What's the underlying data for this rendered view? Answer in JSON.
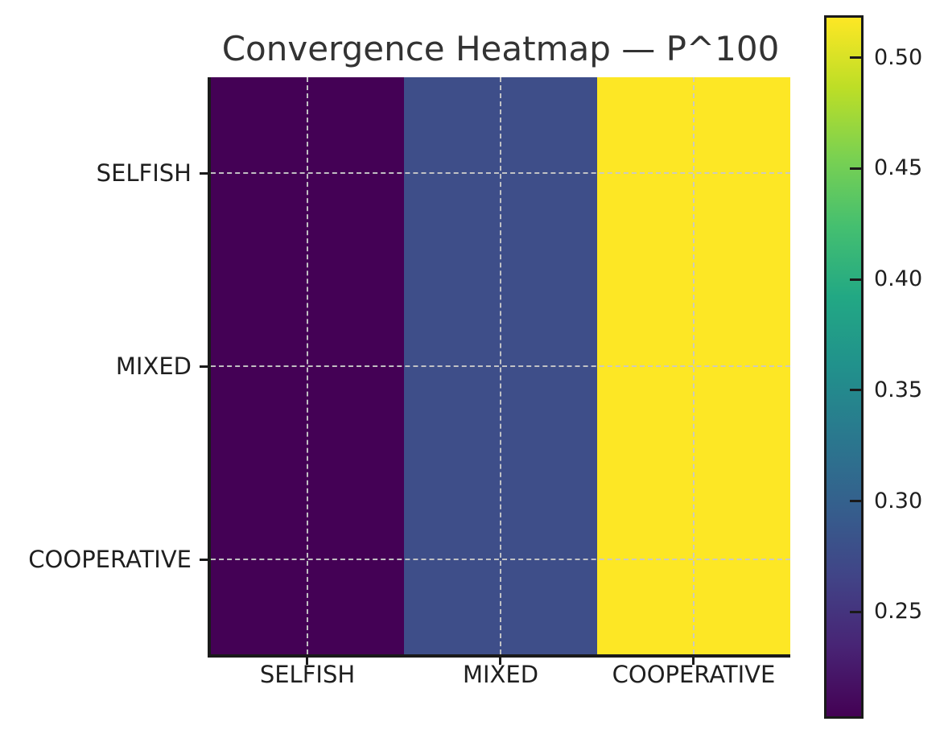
{
  "chart_data": {
    "type": "heatmap",
    "title": "Convergence Heatmap — P^100",
    "x_categories": [
      "SELFISH",
      "MIXED",
      "COOPERATIVE"
    ],
    "y_categories": [
      "SELFISH",
      "MIXED",
      "COOPERATIVE"
    ],
    "matrix": [
      [
        0.203,
        0.279,
        0.518
      ],
      [
        0.203,
        0.279,
        0.518
      ],
      [
        0.203,
        0.279,
        0.518
      ]
    ],
    "vmin": 0.203,
    "vmax": 0.518,
    "colormap": "viridis",
    "column_colors": [
      "#440155",
      "#3E4E89",
      "#FDE725"
    ],
    "grid": {
      "style": "dashed",
      "color": "#C8C8C8",
      "on": true
    },
    "colorbar": {
      "position": "right",
      "ticks": [
        0.5,
        0.45,
        0.4,
        0.35,
        0.3,
        0.25
      ],
      "tick_labels": [
        "0.50",
        "0.45",
        "0.40",
        "0.35",
        "0.30",
        "0.25"
      ],
      "gradient_stops": [
        "#440154",
        "#482475",
        "#414487",
        "#355F8D",
        "#2A788E",
        "#21918C",
        "#22A884",
        "#44BF70",
        "#7AD151",
        "#BDDE26",
        "#FDE725"
      ]
    },
    "colors": {
      "title_text": "#333333",
      "axis_text": "#1F1F1F",
      "spine": "#1A1A1A",
      "background": "#FFFFFF"
    }
  }
}
